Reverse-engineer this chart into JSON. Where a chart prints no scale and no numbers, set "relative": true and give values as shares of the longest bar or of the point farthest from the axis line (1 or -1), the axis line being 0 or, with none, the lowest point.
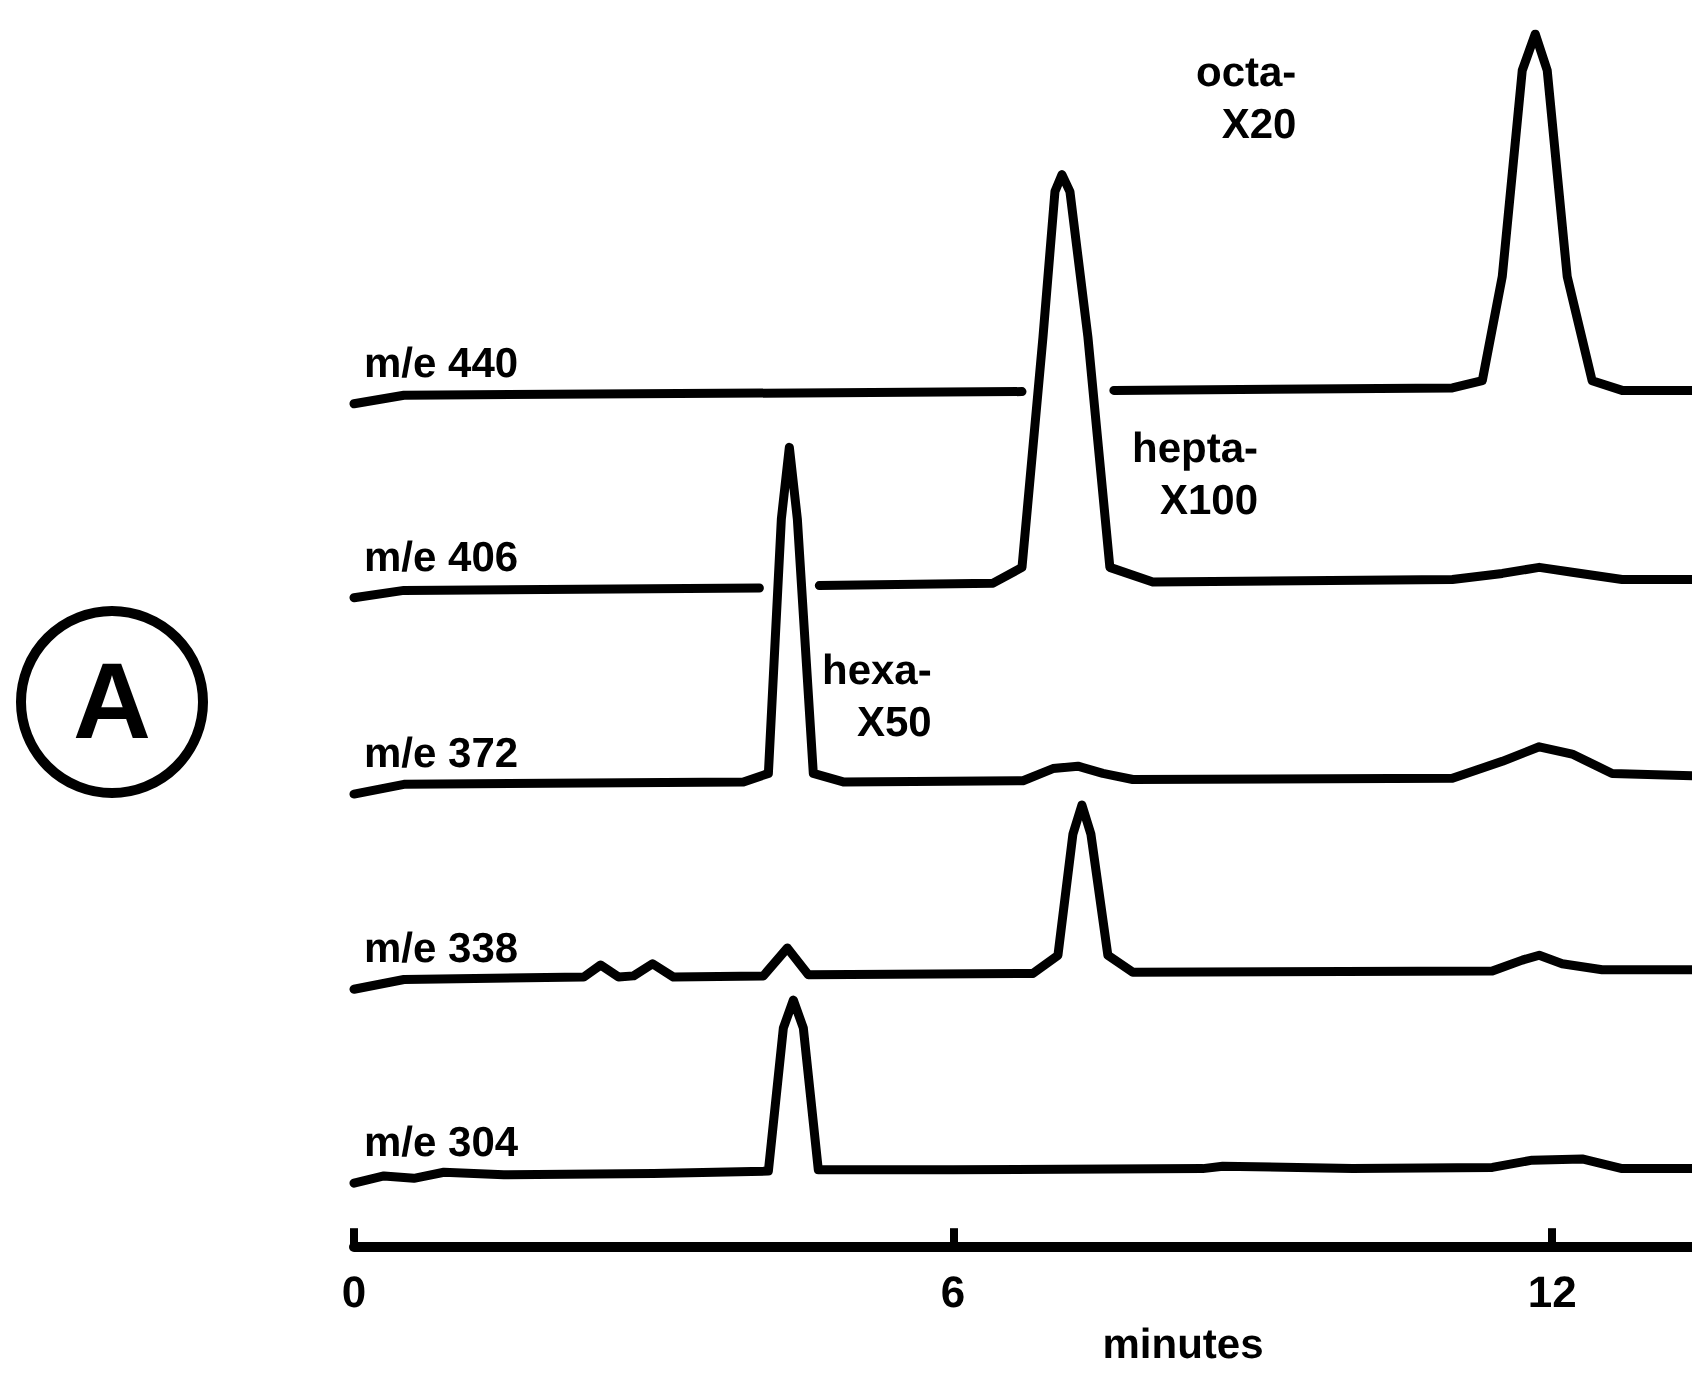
{
  "chart_data": {
    "type": "line",
    "relative": true,
    "xlabel": "minutes",
    "xlim": [
      0,
      13.4
    ],
    "xticks": [
      0,
      6,
      12
    ],
    "tick_labels": "x",
    "grid": false,
    "legend": false,
    "marker": "none",
    "line_style": "solid",
    "annotations": [
      "A",
      "octa-\nX20",
      "hepta-\nX100",
      "hexa-\nX50"
    ],
    "series": [
      {
        "name": "m/e 440",
        "color": "#000000",
        "x": [
          0,
          0.5,
          6.69,
          7.1,
          7.61,
          11,
          11.3,
          11.5,
          11.7,
          11.83,
          11.95,
          12.15,
          12.4,
          12.7,
          13.4
        ],
        "values": [
          0.695,
          0.702,
          0.705,
          null,
          0.706,
          0.708,
          0.714,
          0.8,
          0.97,
          1.0,
          0.97,
          0.8,
          0.714,
          0.706,
          0.706
        ]
      },
      {
        "name": "m/e 406",
        "color": "#000000",
        "x": [
          0,
          0.5,
          4.06,
          4.36,
          4.66,
          6.4,
          6.69,
          6.9,
          7.02,
          7.09,
          7.17,
          7.35,
          7.57,
          8,
          11,
          11.5,
          11.87,
          12.2,
          12.7,
          13.4
        ],
        "values": [
          0.535,
          0.541,
          0.543,
          null,
          0.545,
          0.547,
          0.56,
          0.75,
          0.87,
          0.884,
          0.87,
          0.75,
          0.56,
          0.548,
          0.55,
          0.555,
          0.56,
          0.556,
          0.55,
          0.55
        ]
      },
      {
        "name": "m/e 372",
        "color": "#000000",
        "x": [
          0,
          0.5,
          3.9,
          4.15,
          4.28,
          4.36,
          4.44,
          4.6,
          4.9,
          6.7,
          7.0,
          7.25,
          7.5,
          7.8,
          11,
          11.5,
          11.87,
          12.2,
          12.6,
          13.4
        ],
        "values": [
          0.373,
          0.381,
          0.383,
          0.39,
          0.6,
          0.659,
          0.6,
          0.39,
          0.383,
          0.384,
          0.394,
          0.396,
          0.39,
          0.385,
          0.386,
          0.4,
          0.412,
          0.406,
          0.39,
          0.388
        ]
      },
      {
        "name": "m/e 338",
        "color": "#000000",
        "x": [
          0,
          0.5,
          2.3,
          2.47,
          2.65,
          2.8,
          2.99,
          3.2,
          4.1,
          4.34,
          4.55,
          6.8,
          7.05,
          7.2,
          7.29,
          7.38,
          7.55,
          7.8,
          11.4,
          11.7,
          11.87,
          12.1,
          12.5,
          13.4
        ],
        "values": [
          0.212,
          0.22,
          0.222,
          0.232,
          0.222,
          0.223,
          0.233,
          0.222,
          0.223,
          0.246,
          0.224,
          0.225,
          0.24,
          0.34,
          0.364,
          0.34,
          0.24,
          0.226,
          0.227,
          0.236,
          0.24,
          0.233,
          0.228,
          0.228
        ]
      },
      {
        "name": "m/e 304",
        "color": "#000000",
        "x": [
          0,
          0.3,
          0.6,
          0.9,
          1.5,
          3,
          4.15,
          4.3,
          4.4,
          4.5,
          4.65,
          6,
          8.5,
          8.7,
          10,
          11.4,
          11.8,
          12.3,
          12.7,
          13.4
        ],
        "values": [
          0.052,
          0.058,
          0.056,
          0.061,
          0.059,
          0.06,
          0.062,
          0.18,
          0.203,
          0.18,
          0.063,
          0.063,
          0.064,
          0.066,
          0.064,
          0.065,
          0.071,
          0.072,
          0.064,
          0.064
        ]
      }
    ]
  }
}
